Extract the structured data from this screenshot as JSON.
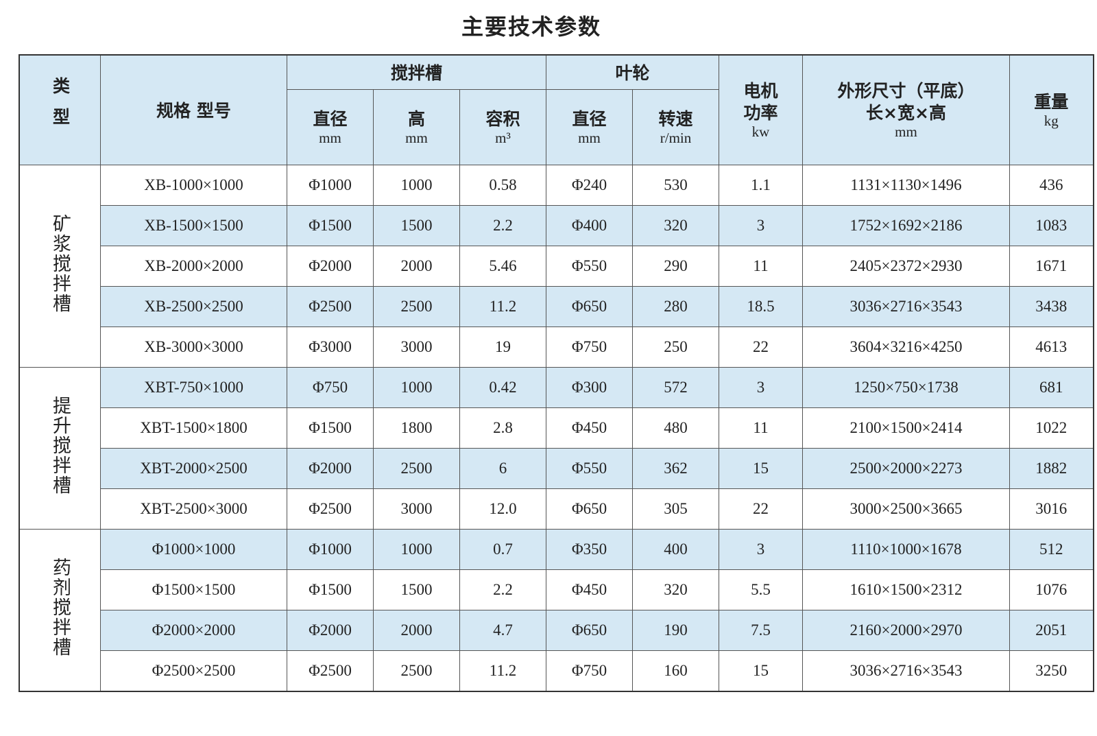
{
  "title": "主要技术参数",
  "header": {
    "type": "类型",
    "model": "规格 型号",
    "tank": {
      "label": "搅拌槽",
      "diameter": {
        "label": "直径",
        "unit": "mm"
      },
      "height": {
        "label": "高",
        "unit": "mm"
      },
      "volume": {
        "label": "容积",
        "unit": "m³"
      }
    },
    "impeller": {
      "label": "叶轮",
      "diameter": {
        "label": "直径",
        "unit": "mm"
      },
      "speed": {
        "label": "转速",
        "unit": "r/min"
      }
    },
    "power": {
      "label": "电机功率",
      "unit": "kw"
    },
    "dimensions": {
      "label": "外形尺寸（平底）",
      "sub": "长×宽×高",
      "unit": "mm"
    },
    "weight": {
      "label": "重量",
      "unit": "kg"
    }
  },
  "groups": [
    {
      "type": "矿浆搅拌槽",
      "rows": [
        [
          "XB-1000×1000",
          "Φ1000",
          "1000",
          "0.58",
          "Φ240",
          "530",
          "1.1",
          "1131×1130×1496",
          "436"
        ],
        [
          "XB-1500×1500",
          "Φ1500",
          "1500",
          "2.2",
          "Φ400",
          "320",
          "3",
          "1752×1692×2186",
          "1083"
        ],
        [
          "XB-2000×2000",
          "Φ2000",
          "2000",
          "5.46",
          "Φ550",
          "290",
          "11",
          "2405×2372×2930",
          "1671"
        ],
        [
          "XB-2500×2500",
          "Φ2500",
          "2500",
          "11.2",
          "Φ650",
          "280",
          "18.5",
          "3036×2716×3543",
          "3438"
        ],
        [
          "XB-3000×3000",
          "Φ3000",
          "3000",
          "19",
          "Φ750",
          "250",
          "22",
          "3604×3216×4250",
          "4613"
        ]
      ]
    },
    {
      "type": "提升搅拌槽",
      "rows": [
        [
          "XBT-750×1000",
          "Φ750",
          "1000",
          "0.42",
          "Φ300",
          "572",
          "3",
          "1250×750×1738",
          "681"
        ],
        [
          "XBT-1500×1800",
          "Φ1500",
          "1800",
          "2.8",
          "Φ450",
          "480",
          "11",
          "2100×1500×2414",
          "1022"
        ],
        [
          "XBT-2000×2500",
          "Φ2000",
          "2500",
          "6",
          "Φ550",
          "362",
          "15",
          "2500×2000×2273",
          "1882"
        ],
        [
          "XBT-2500×3000",
          "Φ2500",
          "3000",
          "12.0",
          "Φ650",
          "305",
          "22",
          "3000×2500×3665",
          "3016"
        ]
      ]
    },
    {
      "type": "药剂搅拌槽",
      "rows": [
        [
          "Φ1000×1000",
          "Φ1000",
          "1000",
          "0.7",
          "Φ350",
          "400",
          "3",
          "1110×1000×1678",
          "512"
        ],
        [
          "Φ1500×1500",
          "Φ1500",
          "1500",
          "2.2",
          "Φ450",
          "320",
          "5.5",
          "1610×1500×2312",
          "1076"
        ],
        [
          "Φ2000×2000",
          "Φ2000",
          "2000",
          "4.7",
          "Φ650",
          "190",
          "7.5",
          "2160×2000×2970",
          "2051"
        ],
        [
          "Φ2500×2500",
          "Φ2500",
          "2500",
          "11.2",
          "Φ750",
          "160",
          "15",
          "3036×2716×3543",
          "3250"
        ]
      ]
    }
  ]
}
